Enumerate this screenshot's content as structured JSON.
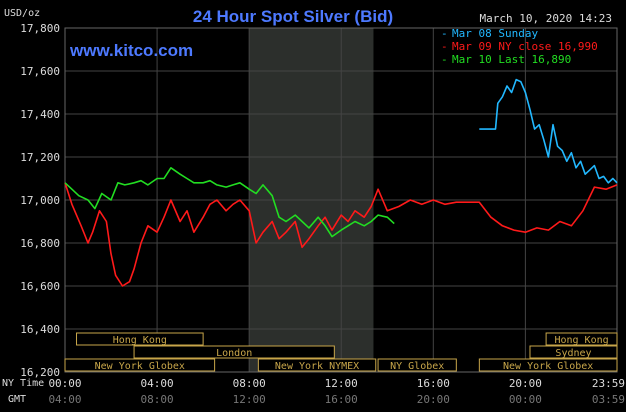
{
  "chart_data": {
    "type": "line",
    "title": "24 Hour Spot Silver (Bid)",
    "watermark": "www.kitco.com",
    "unit_label": "USD/oz",
    "timestamp": "March 10, 2020 14:23",
    "ylim": [
      16.2,
      17.8
    ],
    "y_ticks": [
      "17,800",
      "17,600",
      "17,400",
      "17,200",
      "17,000",
      "16,800",
      "16,600",
      "16,400",
      "16,200"
    ],
    "x_ticks_ny": [
      "00:00",
      "04:00",
      "08:00",
      "12:00",
      "16:00",
      "20:00",
      "23:59"
    ],
    "x_ticks_gmt": [
      "04:00",
      "08:00",
      "12:00",
      "16:00",
      "20:00",
      "00:00",
      "03:59"
    ],
    "x_axis_label_ny": "NY Time",
    "x_axis_label_gmt": "GMT",
    "legend_position": "top-right",
    "colors": {
      "mar08": "#22b8ff",
      "mar09": "#ff1a1a",
      "mar10": "#22dd22",
      "grid": "#444444",
      "session_fill": "#c8a64a",
      "highlight": "#2c2f2c"
    },
    "series": [
      {
        "name": "Mar 08 Sunday",
        "color": "#22b8ff",
        "x": [
          18.0,
          18.7,
          18.8,
          19.0,
          19.2,
          19.4,
          19.6,
          19.8,
          20.0,
          20.2,
          20.4,
          20.6,
          20.8,
          21.0,
          21.2,
          21.4,
          21.6,
          21.8,
          22.0,
          22.2,
          22.4,
          22.6,
          22.8,
          23.0,
          23.2,
          23.4,
          23.6,
          23.8,
          23.98
        ],
        "values": [
          17.33,
          17.33,
          17.45,
          17.48,
          17.53,
          17.5,
          17.56,
          17.55,
          17.5,
          17.42,
          17.33,
          17.35,
          17.28,
          17.2,
          17.35,
          17.25,
          17.23,
          17.18,
          17.22,
          17.15,
          17.18,
          17.12,
          17.14,
          17.16,
          17.1,
          17.11,
          17.08,
          17.1,
          17.08
        ]
      },
      {
        "name": "Mar 09 NY close 16,990",
        "color": "#ff1a1a",
        "x": [
          0.0,
          0.3,
          0.7,
          1.0,
          1.2,
          1.5,
          1.8,
          2.0,
          2.2,
          2.5,
          2.8,
          3.0,
          3.3,
          3.6,
          4.0,
          4.3,
          4.6,
          5.0,
          5.3,
          5.6,
          6.0,
          6.3,
          6.6,
          7.0,
          7.3,
          7.6,
          8.0,
          8.3,
          8.6,
          9.0,
          9.3,
          9.6,
          10.0,
          10.3,
          10.6,
          11.0,
          11.3,
          11.6,
          12.0,
          12.3,
          12.6,
          13.0,
          13.3,
          13.6,
          14.0,
          14.5,
          15.0,
          15.5,
          16.0,
          16.5,
          17.0,
          17.5,
          18.0,
          18.5,
          19.0,
          19.5,
          20.0,
          20.5,
          21.0,
          21.5,
          22.0,
          22.5,
          23.0,
          23.5,
          23.98
        ],
        "values": [
          17.08,
          16.98,
          16.88,
          16.8,
          16.85,
          16.95,
          16.9,
          16.75,
          16.65,
          16.6,
          16.62,
          16.68,
          16.8,
          16.88,
          16.85,
          16.92,
          17.0,
          16.9,
          16.95,
          16.85,
          16.92,
          16.98,
          17.0,
          16.95,
          16.98,
          17.0,
          16.95,
          16.8,
          16.85,
          16.9,
          16.82,
          16.85,
          16.9,
          16.78,
          16.82,
          16.88,
          16.92,
          16.86,
          16.93,
          16.9,
          16.95,
          16.92,
          16.97,
          17.05,
          16.95,
          16.97,
          17.0,
          16.98,
          17.0,
          16.98,
          16.99,
          16.99,
          16.99,
          16.92,
          16.88,
          16.86,
          16.85,
          16.87,
          16.86,
          16.9,
          16.88,
          16.95,
          17.06,
          17.05,
          17.07
        ]
      },
      {
        "name": "Mar 10 Last 16,890",
        "color": "#22dd22",
        "x": [
          0.0,
          0.3,
          0.6,
          1.0,
          1.3,
          1.6,
          2.0,
          2.3,
          2.6,
          3.0,
          3.3,
          3.6,
          4.0,
          4.3,
          4.6,
          5.0,
          5.3,
          5.6,
          6.0,
          6.3,
          6.6,
          7.0,
          7.3,
          7.6,
          8.0,
          8.3,
          8.6,
          9.0,
          9.3,
          9.6,
          10.0,
          10.3,
          10.6,
          11.0,
          11.3,
          11.6,
          12.0,
          12.3,
          12.6,
          13.0,
          13.3,
          13.6,
          14.0,
          14.3
        ],
        "values": [
          17.08,
          17.05,
          17.02,
          17.0,
          16.96,
          17.03,
          17.0,
          17.08,
          17.07,
          17.08,
          17.09,
          17.07,
          17.1,
          17.1,
          17.15,
          17.12,
          17.1,
          17.08,
          17.08,
          17.09,
          17.07,
          17.06,
          17.07,
          17.08,
          17.05,
          17.03,
          17.07,
          17.02,
          16.92,
          16.9,
          16.93,
          16.9,
          16.87,
          16.92,
          16.88,
          16.83,
          16.86,
          16.88,
          16.9,
          16.88,
          16.9,
          16.93,
          16.92,
          16.89
        ]
      }
    ],
    "highlight_range": [
      8.0,
      13.4
    ],
    "sessions": {
      "row1": [
        {
          "label": "Hong Kong",
          "start": 0.5,
          "end": 6.0
        },
        {
          "label": "Hong Kong",
          "start": 20.9,
          "end": 23.98
        }
      ],
      "row2": [
        {
          "label": "London",
          "start": 3.0,
          "end": 11.7
        },
        {
          "label": "Sydney",
          "start": 20.2,
          "end": 23.98
        }
      ],
      "row3": [
        {
          "label": "New York Globex",
          "start": 0.0,
          "end": 6.5
        },
        {
          "label": "New York NYMEX",
          "start": 8.4,
          "end": 13.5
        },
        {
          "label": "NY Globex",
          "start": 13.6,
          "end": 17.0
        },
        {
          "label": "New York Globex",
          "start": 18.0,
          "end": 23.98
        }
      ]
    }
  }
}
